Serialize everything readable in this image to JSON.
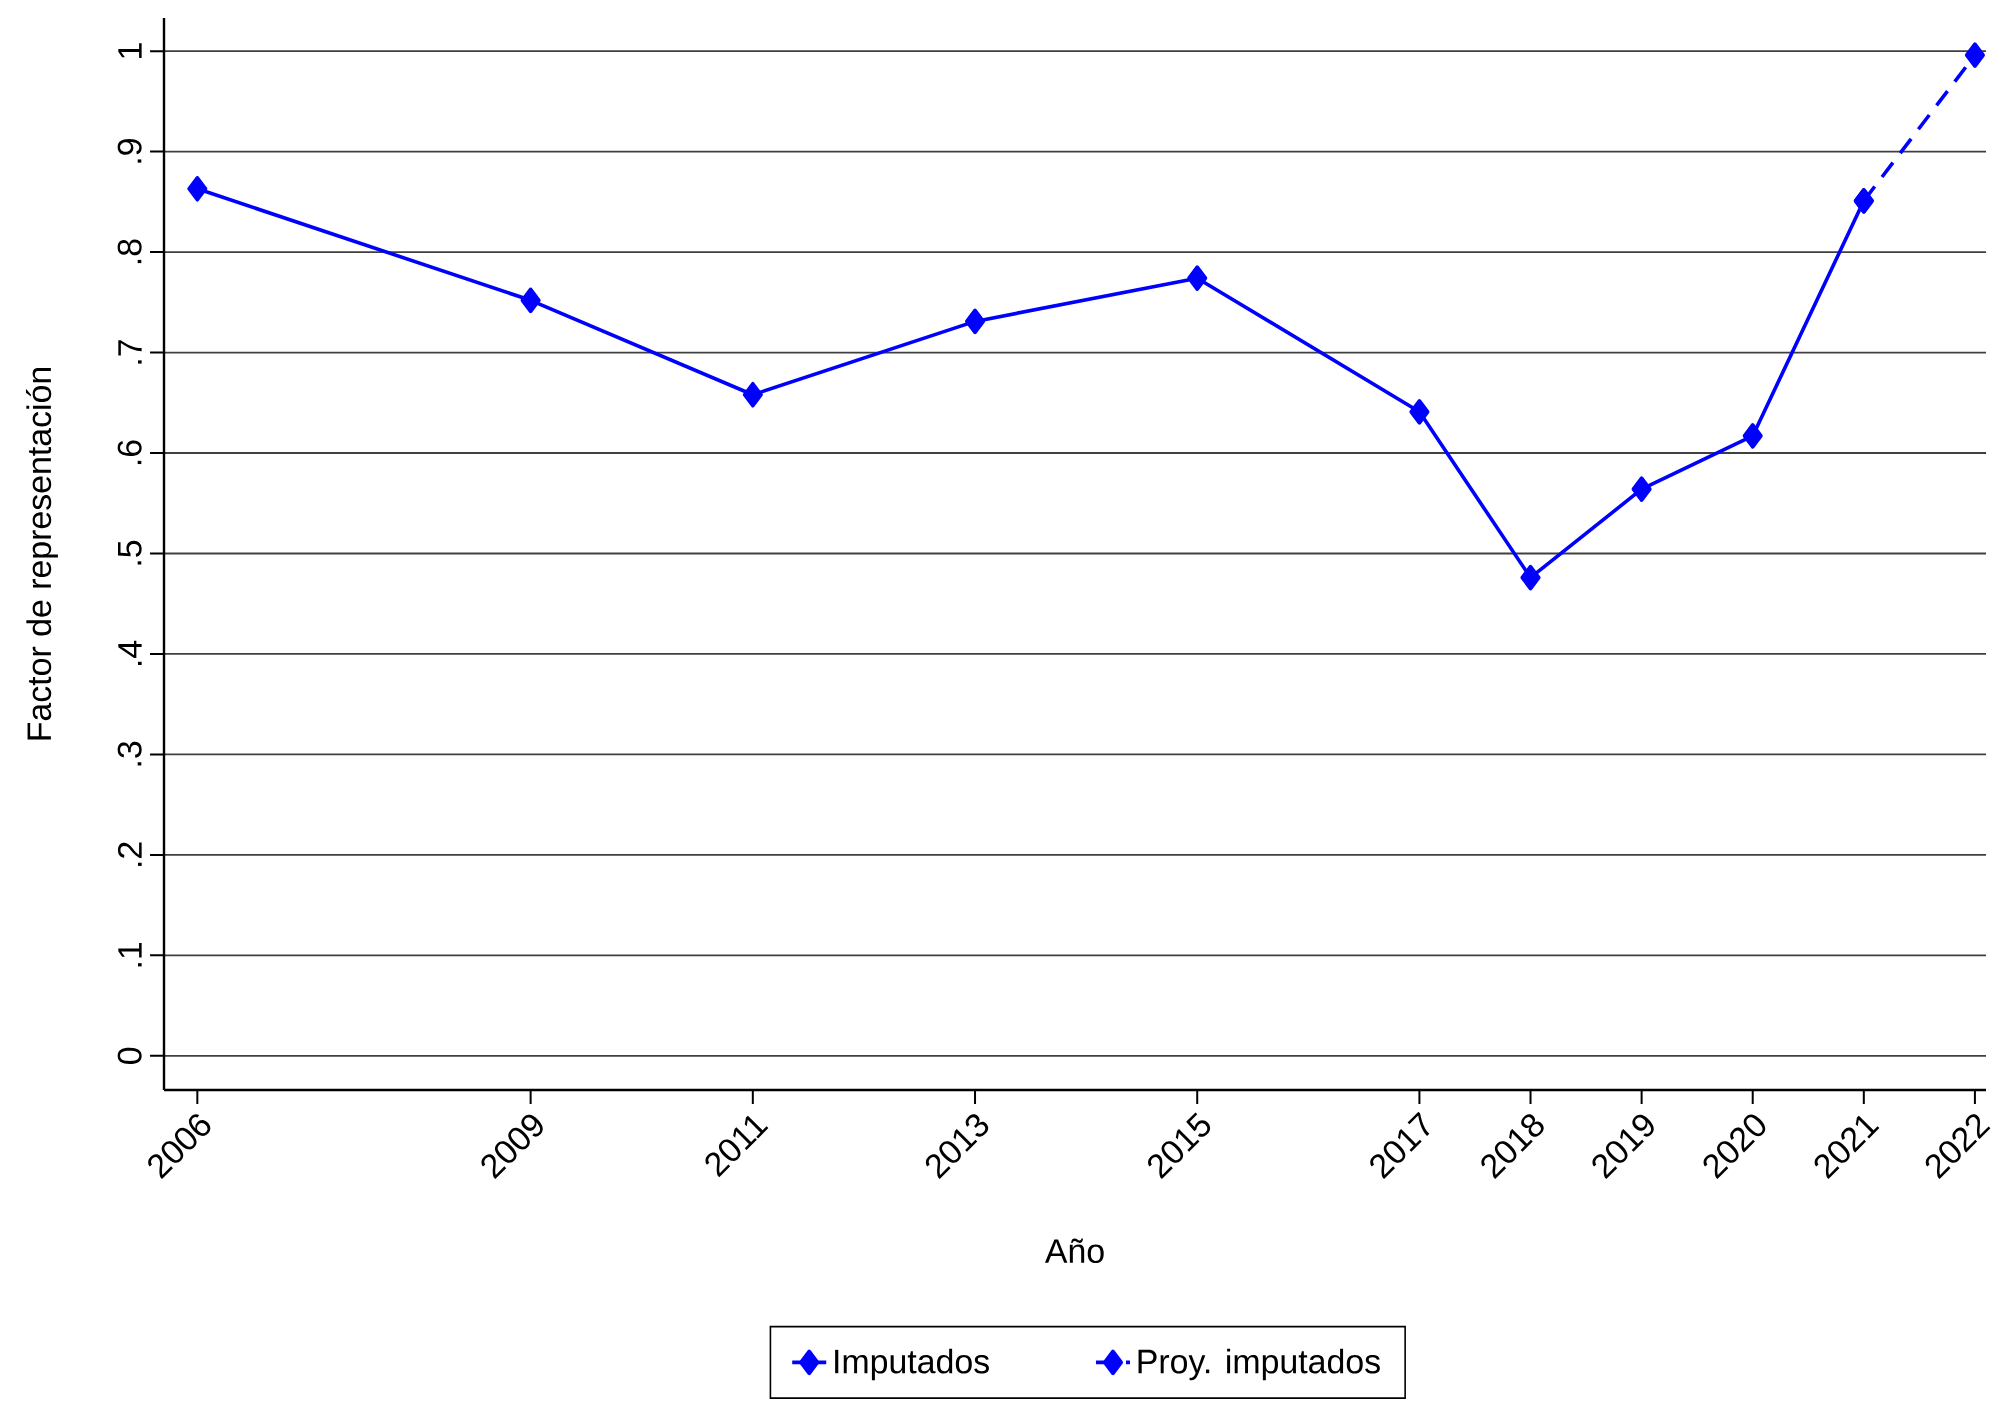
{
  "chart_data": {
    "type": "line",
    "xlabel": "Año",
    "ylabel": "Factor de representación",
    "xlim": [
      2005.7,
      2022.1
    ],
    "ylim": [
      -0.034,
      1.033
    ],
    "xticks": [
      2006,
      2009,
      2011,
      2013,
      2015,
      2017,
      2018,
      2019,
      2020,
      2021,
      2022
    ],
    "yticks": [
      0,
      {
        "value": 0.1,
        "label": ".1"
      },
      {
        "value": 0.2,
        "label": ".2"
      },
      {
        "value": 0.3,
        "label": ".3"
      },
      {
        "value": 0.4,
        "label": ".4"
      },
      {
        "value": 0.5,
        "label": ".5"
      },
      {
        "value": 0.6,
        "label": ".6"
      },
      {
        "value": 0.7,
        "label": ".7"
      },
      {
        "value": 0.8,
        "label": ".8"
      },
      {
        "value": 0.9,
        "label": ".9"
      },
      1
    ],
    "grid": "y",
    "legend": "bottom",
    "marker": "diamond",
    "series": [
      {
        "name": "Imputados",
        "color": "#0000ff",
        "line_style": "solid",
        "x": [
          2006,
          2009,
          2011,
          2013,
          2015,
          2017,
          2018,
          2019,
          2020,
          2021
        ],
        "values": [
          0.863,
          0.752,
          0.658,
          0.731,
          0.774,
          0.641,
          0.476,
          0.564,
          0.617,
          0.851
        ]
      },
      {
        "name": "Proy. imputados",
        "color": "#0000ff",
        "line_style": "dashed",
        "x": [
          2021,
          2022
        ],
        "values": [
          0.851,
          0.996
        ]
      }
    ]
  }
}
